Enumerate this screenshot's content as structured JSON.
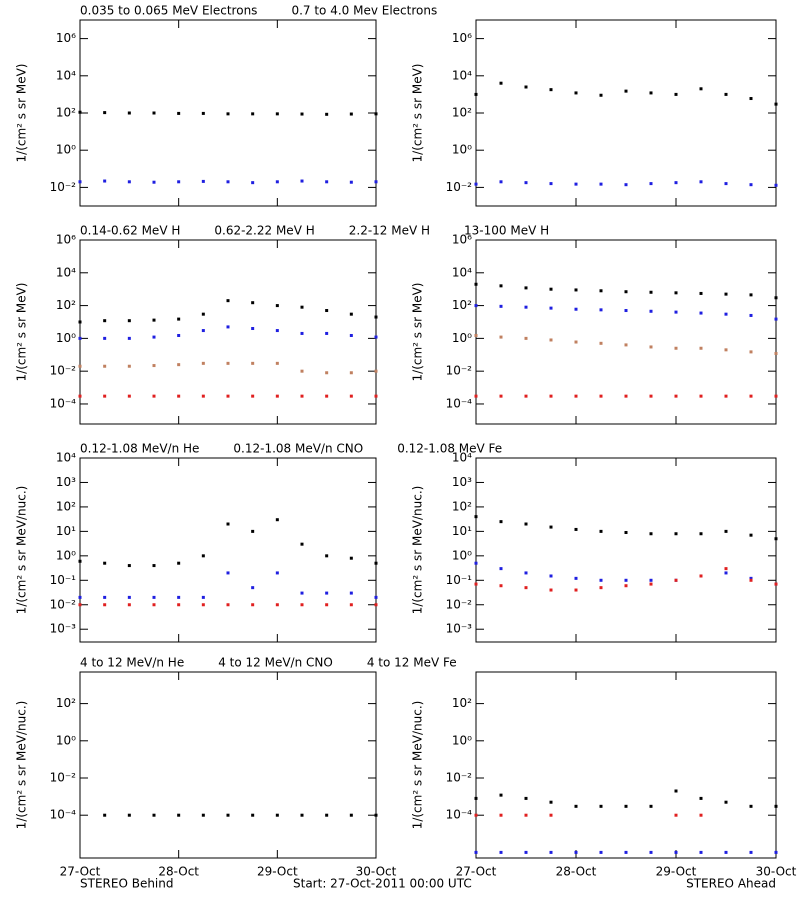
{
  "chart_data": [
    {
      "type": "scatter",
      "log_y": true,
      "y_label": "1/(cm² s sr MeV)",
      "x": [
        0,
        6,
        12,
        18,
        24,
        30,
        36,
        42,
        48,
        54,
        60,
        66,
        72
      ],
      "xlim": [
        0,
        72
      ],
      "xticks": [
        0,
        24,
        48,
        72
      ],
      "ylim": [
        0.001,
        10000000
      ],
      "yticks": [
        {
          "value": 0.01,
          "label": "10⁻²"
        },
        {
          "value": 1,
          "label": "10⁰"
        },
        {
          "value": 100,
          "label": "10²"
        },
        {
          "value": 10000,
          "label": "10⁴"
        },
        {
          "value": 1000000,
          "label": "10⁶"
        }
      ],
      "series": [
        {
          "name": "0.035 to 0.065 MeV Electrons",
          "color": "#000000",
          "values": [
            110,
            105,
            100,
            100,
            95,
            95,
            90,
            90,
            90,
            88,
            85,
            88,
            90
          ]
        },
        {
          "name": "0.7 to 4.0 Mev Electrons",
          "color": "#1f1fe0",
          "values": [
            0.02,
            0.022,
            0.02,
            0.019,
            0.02,
            0.021,
            0.02,
            0.018,
            0.02,
            0.022,
            0.02,
            0.019,
            0.02
          ]
        }
      ]
    },
    {
      "type": "scatter",
      "log_y": true,
      "y_label": "1/(cm² s sr MeV)",
      "x": [
        0,
        6,
        12,
        18,
        24,
        30,
        36,
        42,
        48,
        54,
        60,
        66,
        72
      ],
      "xlim": [
        0,
        72
      ],
      "xticks": [
        0,
        24,
        48,
        72
      ],
      "ylim": [
        0.001,
        10000000
      ],
      "yticks": [
        {
          "value": 0.01,
          "label": "10⁻²"
        },
        {
          "value": 1,
          "label": "10⁰"
        },
        {
          "value": 100,
          "label": "10²"
        },
        {
          "value": 10000,
          "label": "10⁴"
        },
        {
          "value": 1000000,
          "label": "10⁶"
        }
      ],
      "series": [
        {
          "color": "#000000",
          "values": [
            1000,
            4000,
            2500,
            1800,
            1200,
            900,
            1500,
            1200,
            1000,
            2000,
            1000,
            600,
            300
          ]
        },
        {
          "color": "#1f1fe0",
          "values": [
            0.015,
            0.02,
            0.018,
            0.016,
            0.015,
            0.015,
            0.014,
            0.016,
            0.018,
            0.02,
            0.016,
            0.014,
            0.013
          ]
        }
      ]
    },
    {
      "type": "scatter",
      "log_y": true,
      "y_label": "1/(cm² s sr MeV)",
      "x": [
        0,
        6,
        12,
        18,
        24,
        30,
        36,
        42,
        48,
        54,
        60,
        66,
        72
      ],
      "xlim": [
        0,
        72
      ],
      "xticks": [
        0,
        24,
        48,
        72
      ],
      "ylim": [
        6e-06,
        1000000
      ],
      "yticks": [
        {
          "value": 0.0001,
          "label": "10⁻⁴"
        },
        {
          "value": 0.01,
          "label": "10⁻²"
        },
        {
          "value": 1,
          "label": "10⁰"
        },
        {
          "value": 100,
          "label": "10²"
        },
        {
          "value": 10000,
          "label": "10⁴"
        },
        {
          "value": 1000000,
          "label": "10⁶"
        }
      ],
      "series": [
        {
          "name": "0.14-0.62 MeV H",
          "color": "#000000",
          "values": [
            10,
            12,
            12,
            13,
            15,
            30,
            200,
            150,
            100,
            80,
            50,
            30,
            20
          ]
        },
        {
          "name": "0.62-2.22 MeV H",
          "color": "#1f1fe0",
          "values": [
            1,
            1,
            1,
            1.2,
            1.5,
            3,
            5,
            4,
            3,
            2,
            2,
            1.5,
            1.2
          ]
        },
        {
          "name": "2.2-12 MeV H",
          "color": "#c08060",
          "values": [
            0.02,
            0.02,
            0.02,
            0.022,
            0.025,
            0.03,
            0.03,
            0.03,
            0.03,
            0.01,
            0.008,
            0.008,
            0.01
          ]
        },
        {
          "name": "13-100 MeV H",
          "color": "#e02020",
          "values": [
            0.0003,
            0.0003,
            0.0003,
            0.0003,
            0.0003,
            0.0003,
            0.0003,
            0.0003,
            0.0003,
            0.0003,
            0.0003,
            0.0003,
            0.0003
          ]
        }
      ]
    },
    {
      "type": "scatter",
      "log_y": true,
      "y_label": "1/(cm² s sr MeV)",
      "x": [
        0,
        6,
        12,
        18,
        24,
        30,
        36,
        42,
        48,
        54,
        60,
        66,
        72
      ],
      "xlim": [
        0,
        72
      ],
      "xticks": [
        0,
        24,
        48,
        72
      ],
      "ylim": [
        6e-06,
        1000000
      ],
      "yticks": [
        {
          "value": 0.0001,
          "label": "10⁻⁴"
        },
        {
          "value": 0.01,
          "label": "10⁻²"
        },
        {
          "value": 1,
          "label": "10⁰"
        },
        {
          "value": 100,
          "label": "10²"
        },
        {
          "value": 10000,
          "label": "10⁴"
        },
        {
          "value": 1000000,
          "label": "10⁶"
        }
      ],
      "series": [
        {
          "color": "#000000",
          "values": [
            2000,
            1600,
            1200,
            1000,
            900,
            800,
            700,
            650,
            600,
            550,
            500,
            450,
            300
          ]
        },
        {
          "color": "#1f1fe0",
          "values": [
            100,
            90,
            80,
            70,
            60,
            55,
            50,
            45,
            40,
            35,
            30,
            25,
            15
          ]
        },
        {
          "color": "#c08060",
          "values": [
            1.5,
            1.2,
            1,
            0.8,
            0.6,
            0.5,
            0.4,
            0.3,
            0.25,
            0.25,
            0.2,
            0.15,
            0.12
          ]
        },
        {
          "color": "#e02020",
          "values": [
            0.0003,
            0.0003,
            0.0003,
            0.0003,
            0.0003,
            0.0003,
            0.0003,
            0.0003,
            0.0003,
            0.0003,
            0.0003,
            0.0003,
            0.0003
          ]
        }
      ]
    },
    {
      "type": "scatter",
      "log_y": true,
      "y_label": "1/(cm² s sr MeV/nuc.)",
      "x": [
        0,
        6,
        12,
        18,
        24,
        30,
        36,
        42,
        48,
        54,
        60,
        66,
        72
      ],
      "xlim": [
        0,
        72
      ],
      "xticks": [
        0,
        24,
        48,
        72
      ],
      "ylim": [
        0.0003,
        10000
      ],
      "yticks": [
        {
          "value": 0.001,
          "label": "10⁻³"
        },
        {
          "value": 0.01,
          "label": "10⁻²"
        },
        {
          "value": 0.1,
          "label": "10⁻¹"
        },
        {
          "value": 1,
          "label": "10⁰"
        },
        {
          "value": 10,
          "label": "10¹"
        },
        {
          "value": 100,
          "label": "10²"
        },
        {
          "value": 1000,
          "label": "10³"
        },
        {
          "value": 10000,
          "label": "10⁴"
        }
      ],
      "series": [
        {
          "name": "0.12-1.08 MeV/n He",
          "color": "#000000",
          "values": [
            0.6,
            0.5,
            0.4,
            0.4,
            0.5,
            1,
            20,
            10,
            30,
            3,
            1,
            0.8,
            0.5
          ]
        },
        {
          "name": "0.12-1.08 MeV/n CNO",
          "color": "#1f1fe0",
          "values": [
            0.02,
            0.02,
            0.02,
            0.02,
            0.02,
            0.02,
            0.2,
            0.05,
            0.2,
            0.03,
            0.03,
            0.03,
            0.02
          ]
        },
        {
          "name": "0.12-1.08 MeV Fe",
          "color": "#e02020",
          "values": [
            0.01,
            0.01,
            0.01,
            0.01,
            0.01,
            0.01,
            0.01,
            0.01,
            0.01,
            0.01,
            0.01,
            0.01,
            0.01
          ]
        }
      ]
    },
    {
      "type": "scatter",
      "log_y": true,
      "y_label": "1/(cm² s sr MeV/nuc.)",
      "x": [
        0,
        6,
        12,
        18,
        24,
        30,
        36,
        42,
        48,
        54,
        60,
        66,
        72
      ],
      "xlim": [
        0,
        72
      ],
      "xticks": [
        0,
        24,
        48,
        72
      ],
      "ylim": [
        0.0003,
        10000
      ],
      "yticks": [
        {
          "value": 0.001,
          "label": "10⁻³"
        },
        {
          "value": 0.01,
          "label": "10⁻²"
        },
        {
          "value": 0.1,
          "label": "10⁻¹"
        },
        {
          "value": 1,
          "label": "10⁰"
        },
        {
          "value": 10,
          "label": "10¹"
        },
        {
          "value": 100,
          "label": "10²"
        },
        {
          "value": 1000,
          "label": "10³"
        },
        {
          "value": 10000,
          "label": "10⁴"
        }
      ],
      "series": [
        {
          "color": "#000000",
          "values": [
            40,
            25,
            20,
            15,
            12,
            10,
            9,
            8,
            8,
            8,
            10,
            7,
            5
          ]
        },
        {
          "color": "#1f1fe0",
          "values": [
            0.5,
            0.3,
            0.2,
            0.15,
            0.12,
            0.1,
            0.1,
            0.1,
            0.1,
            0.15,
            0.2,
            0.12,
            0.07
          ]
        },
        {
          "color": "#e02020",
          "values": [
            0.07,
            0.06,
            0.05,
            0.04,
            0.04,
            0.05,
            0.06,
            0.07,
            0.1,
            0.15,
            0.3,
            0.1,
            0.07
          ]
        }
      ]
    },
    {
      "type": "scatter",
      "log_y": true,
      "y_label": "1/(cm² s sr MeV/nuc.)",
      "x": [
        0,
        6,
        12,
        18,
        24,
        30,
        36,
        42,
        48,
        54,
        60,
        66,
        72
      ],
      "xlim": [
        0,
        72
      ],
      "xticks": [
        {
          "value": 0,
          "label": "27-Oct"
        },
        {
          "value": 24,
          "label": "28-Oct"
        },
        {
          "value": 48,
          "label": "29-Oct"
        },
        {
          "value": 72,
          "label": "30-Oct"
        }
      ],
      "ylim": [
        5e-07,
        5000
      ],
      "yticks": [
        {
          "value": 0.0001,
          "label": "10⁻⁴"
        },
        {
          "value": 0.01,
          "label": "10⁻²"
        },
        {
          "value": 1,
          "label": "10⁰"
        },
        {
          "value": 100,
          "label": "10²"
        }
      ],
      "series": [
        {
          "name": "4 to 12 MeV/n He",
          "color": "#000000",
          "values": [
            null,
            0.0001,
            0.0001,
            0.0001,
            0.0001,
            0.0001,
            0.0001,
            0.0001,
            0.0001,
            0.0001,
            0.0001,
            0.0001,
            0.0001
          ]
        },
        {
          "name": "4 to 12 MeV/n CNO",
          "color": "#1f1fe0",
          "values": [
            null,
            null,
            null,
            null,
            null,
            null,
            null,
            null,
            null,
            null,
            null,
            null,
            null
          ]
        },
        {
          "name": "4 to 12 MeV Fe",
          "color": "#e02020",
          "values": [
            null,
            null,
            null,
            null,
            null,
            null,
            null,
            null,
            null,
            null,
            null,
            null,
            null
          ]
        }
      ]
    },
    {
      "type": "scatter",
      "log_y": true,
      "y_label": "1/(cm² s sr MeV/nuc.)",
      "x": [
        0,
        6,
        12,
        18,
        24,
        30,
        36,
        42,
        48,
        54,
        60,
        66,
        72
      ],
      "xlim": [
        0,
        72
      ],
      "xticks": [
        {
          "value": 0,
          "label": "27-Oct"
        },
        {
          "value": 24,
          "label": "28-Oct"
        },
        {
          "value": 48,
          "label": "29-Oct"
        },
        {
          "value": 72,
          "label": "30-Oct"
        }
      ],
      "ylim": [
        5e-07,
        5000
      ],
      "yticks": [
        {
          "value": 0.0001,
          "label": "10⁻⁴"
        },
        {
          "value": 0.01,
          "label": "10⁻²"
        },
        {
          "value": 1,
          "label": "10⁰"
        },
        {
          "value": 100,
          "label": "10²"
        }
      ],
      "series": [
        {
          "color": "#000000",
          "values": [
            0.0008,
            0.0012,
            0.0008,
            0.0005,
            0.0003,
            0.0003,
            0.0003,
            0.0003,
            0.002,
            0.0008,
            0.0005,
            0.0003,
            0.0003
          ]
        },
        {
          "color": "#1f1fe0",
          "values": [
            1e-06,
            1e-06,
            1e-06,
            1e-06,
            1e-06,
            1e-06,
            1e-06,
            1e-06,
            1e-06,
            1e-06,
            1e-06,
            1e-06,
            1e-06
          ]
        },
        {
          "color": "#e02020",
          "values": [
            0.0001,
            0.0001,
            0.0001,
            0.0001,
            null,
            null,
            null,
            null,
            0.0001,
            0.0001,
            null,
            null,
            null
          ]
        }
      ]
    }
  ],
  "footer": {
    "left": "STEREO Behind",
    "center": "Start: 27-Oct-2011 00:00 UTC",
    "right": "STEREO Ahead"
  }
}
